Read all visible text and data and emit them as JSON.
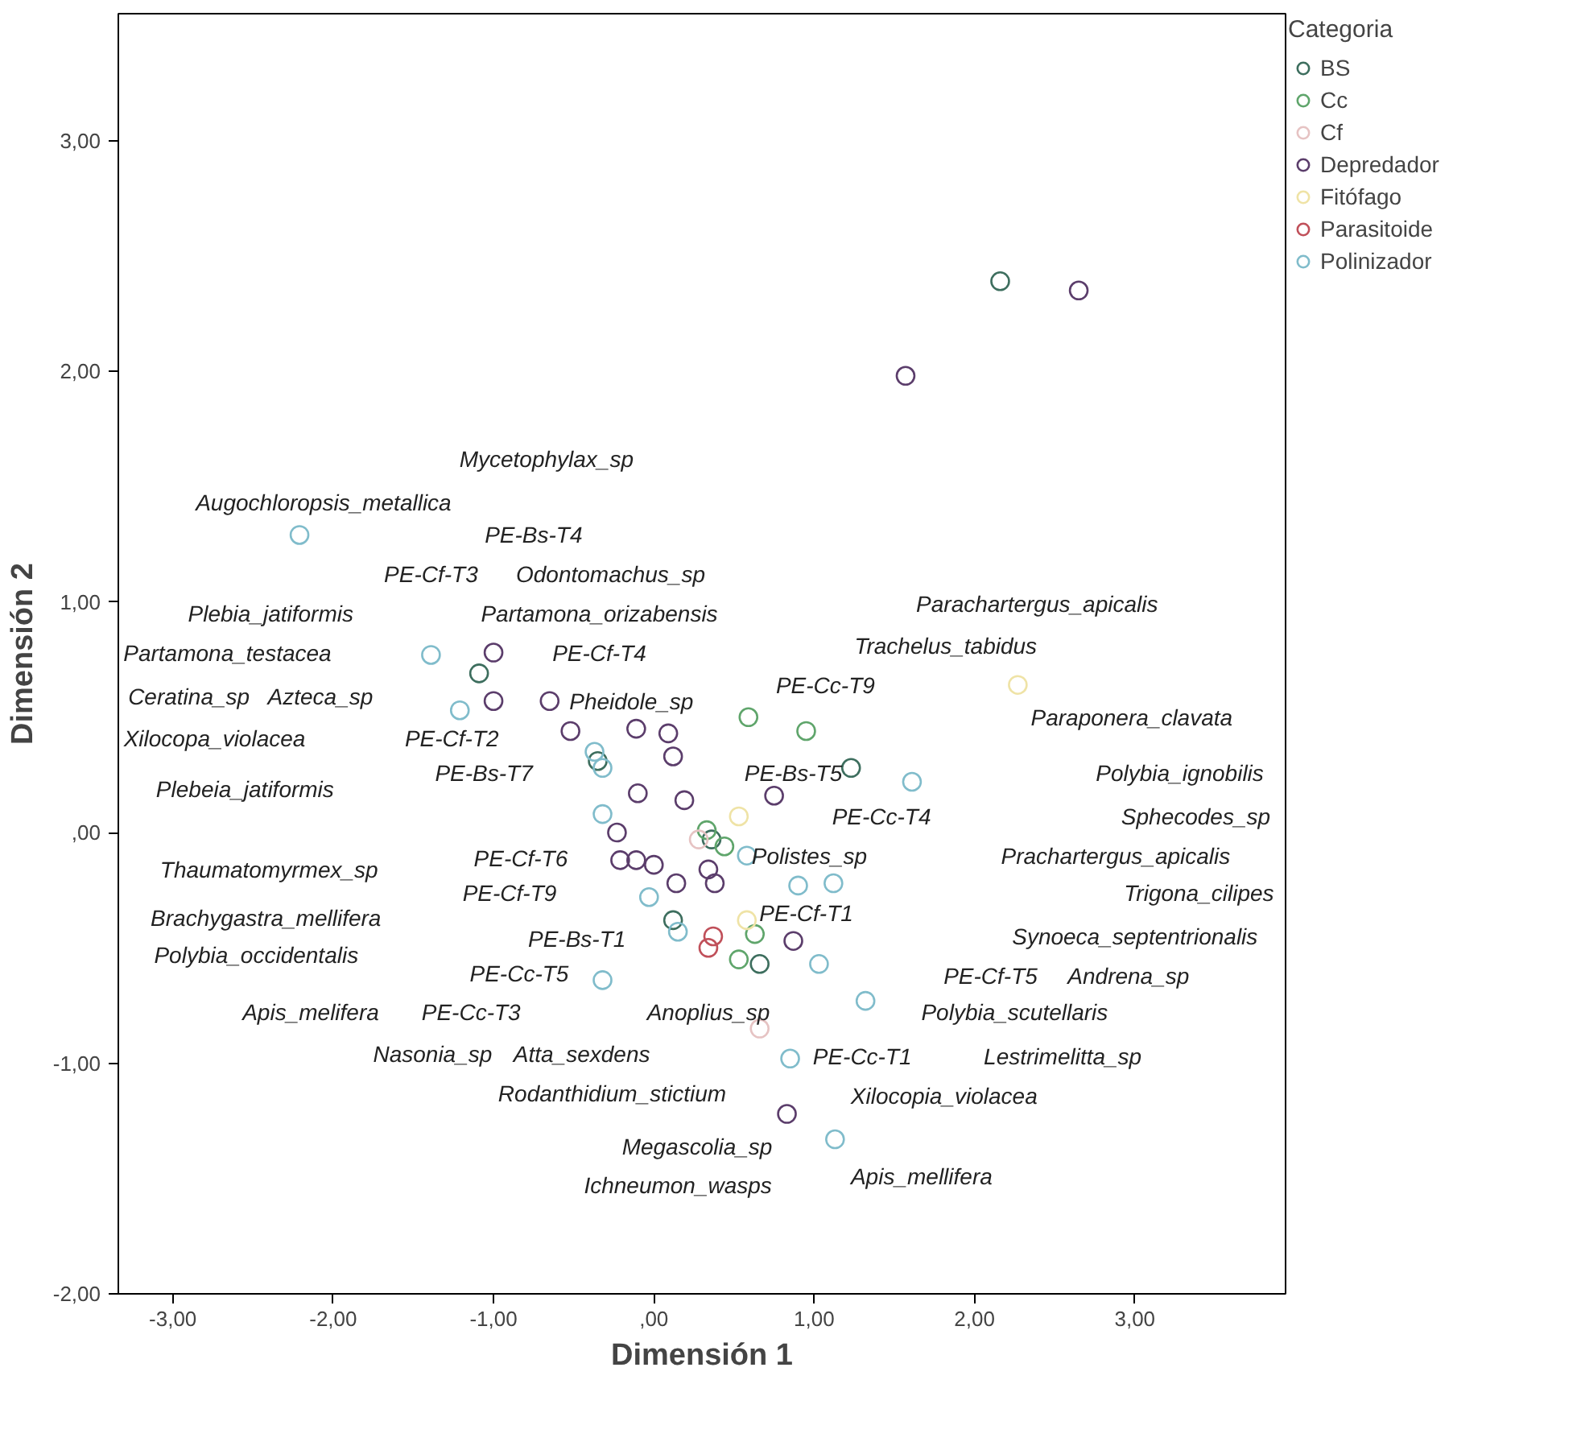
{
  "chart_data": {
    "type": "scatter",
    "xlabel": "Dimensión 1",
    "ylabel": "Dimensión 2",
    "legend_title": "Categoria",
    "legend": "right",
    "grid": false,
    "marker": "circle",
    "xlim": [
      -3.34,
      3.94
    ],
    "ylim": [
      -2.0,
      3.55
    ],
    "xticks": [
      {
        "value": -3,
        "label": "-3,00"
      },
      {
        "value": -2,
        "label": "-2,00"
      },
      {
        "value": -1,
        "label": "-1,00"
      },
      {
        "value": 0,
        "label": ",00"
      },
      {
        "value": 1,
        "label": "1,00"
      },
      {
        "value": 2,
        "label": "2,00"
      },
      {
        "value": 3,
        "label": "3,00"
      }
    ],
    "yticks": [
      {
        "value": -2,
        "label": "-2,00"
      },
      {
        "value": -1,
        "label": "-1,00"
      },
      {
        "value": 0,
        "label": ",00"
      },
      {
        "value": 1,
        "label": "1,00"
      },
      {
        "value": 2,
        "label": "2,00"
      },
      {
        "value": 3,
        "label": "3,00"
      }
    ],
    "series": [
      {
        "name": "BS",
        "color": "#3d6e5e",
        "x": [
          -1.09,
          -0.35,
          1.23,
          2.16,
          0.36,
          0.12,
          0.66
        ],
        "values": [
          0.69,
          0.31,
          0.28,
          2.39,
          -0.03,
          -0.38,
          -0.57
        ]
      },
      {
        "name": "Cc",
        "color": "#5fa56b",
        "x": [
          0.59,
          0.95,
          0.33,
          0.44,
          0.53,
          0.63
        ],
        "values": [
          0.5,
          0.44,
          0.01,
          -0.06,
          -0.55,
          -0.44
        ]
      },
      {
        "name": "Cf",
        "color": "#e6c3c3",
        "x": [
          0.66,
          0.28
        ],
        "values": [
          -0.85,
          -0.03
        ]
      },
      {
        "name": "Depredador",
        "color": "#5b3d6b",
        "x": [
          -1.0,
          -1.0,
          -0.65,
          -0.52,
          -0.11,
          0.09,
          0.12,
          2.65,
          1.57,
          0.75,
          0.19,
          -0.1,
          0.14,
          0.34,
          0.38,
          0.87,
          0.83,
          -0.23,
          -0.21,
          -0.11,
          0.0
        ],
        "values": [
          0.78,
          0.57,
          0.57,
          0.44,
          0.45,
          0.43,
          0.33,
          2.35,
          1.98,
          0.16,
          0.14,
          0.17,
          -0.22,
          -0.16,
          -0.22,
          -0.47,
          -1.22,
          0.0,
          -0.12,
          -0.12,
          -0.14
        ]
      },
      {
        "name": "Fitófago",
        "color": "#efe3a6",
        "x": [
          2.27,
          0.53,
          0.58
        ],
        "values": [
          0.64,
          0.07,
          -0.38
        ]
      },
      {
        "name": "Parasitoide",
        "color": "#c0505a",
        "x": [
          0.34,
          0.37
        ],
        "values": [
          -0.5,
          -0.45
        ]
      },
      {
        "name": "Polinizador",
        "color": "#80bccb",
        "x": [
          -2.21,
          -1.39,
          -1.21,
          -0.37,
          1.61,
          0.58,
          0.9,
          1.12,
          -0.03,
          1.03,
          1.32,
          0.85,
          1.13,
          -0.32,
          -0.32,
          0.15,
          -0.32
        ],
        "values": [
          1.29,
          0.77,
          0.53,
          0.35,
          0.22,
          -0.1,
          -0.23,
          -0.22,
          -0.28,
          -0.57,
          -0.73,
          -0.98,
          -1.33,
          0.28,
          0.08,
          -0.43,
          -0.64
        ]
      }
    ],
    "annotations": [
      "Mycetophylax_sp",
      "Augochloropsis_metallica",
      "PE-Bs-T4",
      "PE-Cf-T3",
      "Odontomachus_sp",
      "Plebia_jatiformis",
      "Partamona_orizabensis",
      "Parachartergus_apicalis",
      "Trachelus_tabidus",
      "Partamona_testacea",
      "PE-Cf-T4",
      "PE-Cc-T9",
      "Ceratina_sp",
      "Azteca_sp",
      "Pheidole_sp",
      "Paraponera_clavata",
      "Xilocopa_violacea",
      "PE-Cf-T2",
      "PE-Bs-T7",
      "PE-Bs-T5",
      "Polybia_ignobilis",
      "Plebeia_jatiformis",
      "PE-Cc-T4",
      "Sphecodes_sp",
      "Polistes_sp",
      "Prachartergus_apicalis",
      "Thaumatomyrmex_sp",
      "PE-Cf-T6",
      "PE-Cf-T9",
      "Trigona_cilipes",
      "Brachygastra_mellifera",
      "PE-Cf-T1",
      "Synoeca_septentrionalis",
      "PE-Bs-T1",
      "Polybia_occidentalis",
      "PE-Cc-T5",
      "PE-Cf-T5",
      "Andrena_sp",
      "Apis_melifera",
      "PE-Cc-T3",
      "Anoplius_sp",
      "Polybia_scutellaris",
      "Nasonia_sp",
      "Atta_sexdens",
      "PE-Cc-T1",
      "Lestrimelitta_sp",
      "Rodanthidium_stictium",
      "Xilocopia_violacea",
      "Megascolia_sp",
      "Ichneumon_wasps",
      "Apis_mellifera"
    ]
  }
}
